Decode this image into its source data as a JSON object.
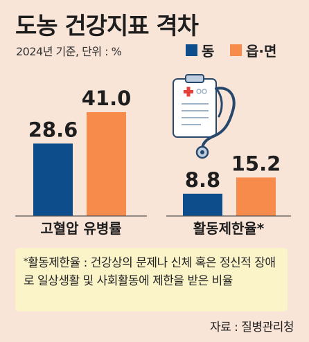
{
  "title": "도농 건강지표 격차",
  "subtitle": "2024년 기준, 단위 : %",
  "legend": [
    {
      "label": "동",
      "color": "#0d4d8b"
    },
    {
      "label": "읍·면",
      "color": "#f68b4c"
    }
  ],
  "chart_data": {
    "type": "bar",
    "categories": [
      "고혈압 유병률",
      "활동제한율*"
    ],
    "series": [
      {
        "name": "동",
        "values": [
          28.6,
          8.8
        ],
        "color": "#0d4d8b"
      },
      {
        "name": "읍·면",
        "values": [
          41.0,
          15.2
        ],
        "color": "#f68b4c"
      }
    ],
    "value_labels": [
      [
        "28.6",
        "8.8"
      ],
      [
        "41.0",
        "15.2"
      ]
    ],
    "ylim": [
      0,
      41
    ],
    "legend_position": "top-right"
  },
  "footnote": {
    "marker": "*",
    "text": "활동제한율 : 건강상의 문제나 신체 혹은 정신적 장애로 일상생활 및 사회활동에 제한을 받은 비율"
  },
  "source": "자료 : 질병관리청",
  "illustration": "clipboard-stethoscope-icon"
}
